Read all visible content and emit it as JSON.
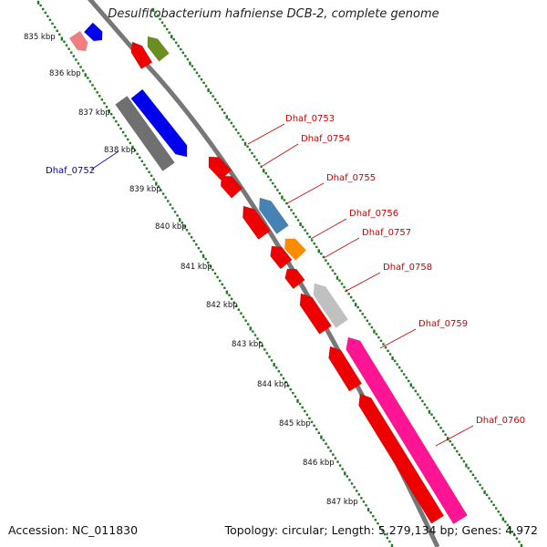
{
  "title": "Desulfitobacterium hafniense DCB-2, complete genome",
  "footer": {
    "accession": "Accession: NC_011830",
    "summary": "Topology: circular; Length: 5,279,134 bp; Genes: 4,972"
  },
  "scale": {
    "ticks": [
      "835 kbp",
      "836 kbp",
      "837 kbp",
      "838 kbp",
      "839 kbp",
      "840 kbp",
      "841 kbp",
      "842 kbp",
      "843 kbp",
      "844 kbp",
      "845 kbp",
      "846 kbp",
      "847 kbp"
    ],
    "tick_color": "#1f7a1f"
  },
  "genes": [
    {
      "label": "",
      "strand": "+",
      "color": "#f08080"
    },
    {
      "label": "",
      "strand": "+",
      "color": "#0000ee"
    },
    {
      "label": "",
      "strand": "-",
      "color": "#ee0000"
    },
    {
      "label": "",
      "strand": "-",
      "color": "#6b8e23"
    },
    {
      "label": "Dhaf_0752",
      "strand": "+",
      "color": "#0000ee"
    },
    {
      "label": "",
      "strand": "+",
      "color": "#707070"
    },
    {
      "label": "Dhaf_0753",
      "strand": "-",
      "color": "#ee0000"
    },
    {
      "label": "Dhaf_0754",
      "strand": "-",
      "color": "#ee0000"
    },
    {
      "label": "Dhaf_0755",
      "strand": "-",
      "color": "#4682b4"
    },
    {
      "label": "Dhaf_0756",
      "strand": "-",
      "color": "#ee0000"
    },
    {
      "label": "Dhaf_0757",
      "strand": "-",
      "color": "#ff8c00"
    },
    {
      "label": "Dhaf_0758",
      "strand": "-",
      "color": "#ee0000"
    },
    {
      "label": "Dhaf_0759",
      "strand": "-",
      "color": "#c0c0c0"
    },
    {
      "label": "",
      "strand": "-",
      "color": "#ee0000"
    },
    {
      "label": "Dhaf_0760",
      "strand": "-",
      "color": "#ff1493"
    },
    {
      "label": "",
      "strand": "-",
      "color": "#ee0000"
    }
  ],
  "label_colors": {
    "forward": "#0000cc",
    "reverse": "#cc0000"
  }
}
